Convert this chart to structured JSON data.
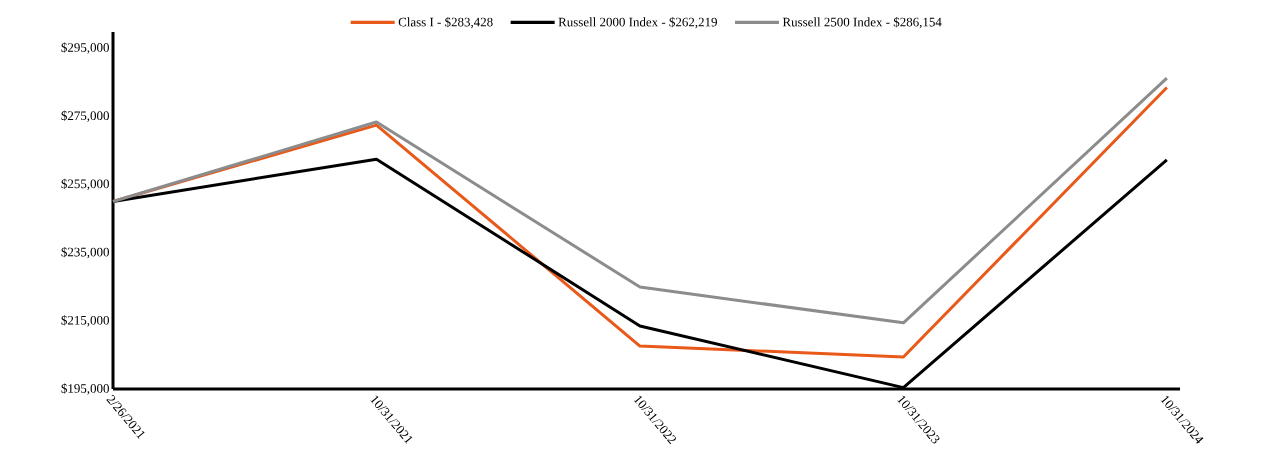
{
  "chart_data": {
    "type": "line",
    "categories": [
      "2/26/2021",
      "10/31/2021",
      "10/31/2022",
      "10/31/2023",
      "10/31/2024"
    ],
    "series": [
      {
        "name": "Class I - $283,428",
        "color": "#e8591a",
        "values": [
          250000,
          272400,
          207600,
          204400,
          283428
        ]
      },
      {
        "name": "Russell 2000 Index - $262,219",
        "color": "#000000",
        "values": [
          250000,
          262400,
          213500,
          195400,
          262219
        ]
      },
      {
        "name": "Russell 2500 Index - $286,154",
        "color": "#8c8c8c",
        "values": [
          250000,
          273300,
          224900,
          214400,
          286154
        ]
      }
    ],
    "ylim": [
      195000,
      299700
    ],
    "yticks": [
      {
        "value": 195000,
        "label": "$195,000"
      },
      {
        "value": 215000,
        "label": "$215,000"
      },
      {
        "value": 235000,
        "label": "$235,000"
      },
      {
        "value": 255000,
        "label": "$255,000"
      },
      {
        "value": 275000,
        "label": "$275,000"
      },
      {
        "value": 295000,
        "label": "$295,000"
      }
    ],
    "legend": "top",
    "grid": false,
    "marker": "none",
    "line_style": "solid"
  }
}
